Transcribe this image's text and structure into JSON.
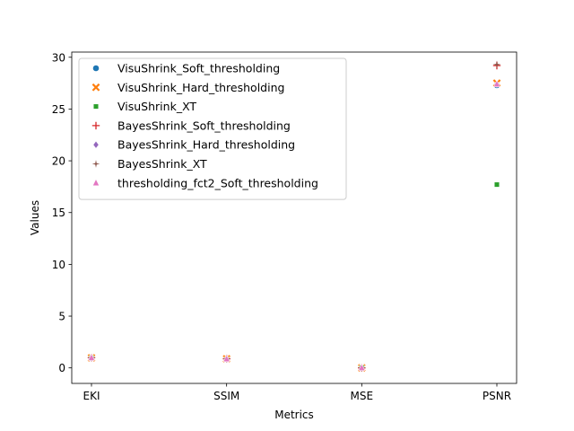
{
  "chart_data": {
    "type": "scatter",
    "title": "",
    "xlabel": "Metrics",
    "ylabel": "Values",
    "categories": [
      "EKI",
      "SSIM",
      "MSE",
      "PSNR"
    ],
    "ylim": [
      -1.5,
      30.5
    ],
    "yticks": [
      0,
      5,
      10,
      15,
      20,
      25,
      30
    ],
    "legend_position": "top-left",
    "series": [
      {
        "name": "VisuShrink_Soft_thresholding",
        "marker": "circle",
        "color": "#1f77b4",
        "values": [
          0.97,
          0.86,
          0.004,
          27.3
        ]
      },
      {
        "name": "VisuShrink_Hard_thresholding",
        "marker": "x",
        "color": "#ff7f0e",
        "values": [
          0.97,
          0.87,
          0.003,
          27.5
        ]
      },
      {
        "name": "VisuShrink_XT",
        "marker": "square",
        "color": "#2ca02c",
        "values": [
          0.95,
          0.8,
          0.02,
          17.7
        ]
      },
      {
        "name": "BayesShrink_Soft_thresholding",
        "marker": "plus",
        "color": "#d62728",
        "values": [
          0.98,
          0.88,
          0.002,
          29.2
        ]
      },
      {
        "name": "BayesShrink_Hard_thresholding",
        "marker": "diamond",
        "color": "#9467bd",
        "values": [
          0.97,
          0.86,
          0.003,
          27.4
        ]
      },
      {
        "name": "BayesShrink_XT",
        "marker": "star",
        "color": "#8c564b",
        "values": [
          0.98,
          0.88,
          0.002,
          29.3
        ]
      },
      {
        "name": "thresholding_fct2_Soft_thresholding",
        "marker": "triangle",
        "color": "#e377c2",
        "values": [
          0.97,
          0.86,
          0.004,
          27.4
        ]
      }
    ]
  }
}
